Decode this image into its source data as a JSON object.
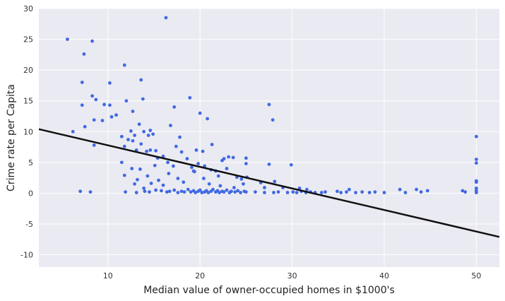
{
  "chart_data": {
    "type": "scatter",
    "title": "",
    "xlabel": "Median value of owner-occupied homes in $1000's",
    "ylabel": "Crime rate per Capita",
    "xlim": [
      2.5,
      52.5
    ],
    "ylim": [
      -12,
      30
    ],
    "x_ticks": [
      10,
      20,
      30,
      40,
      50
    ],
    "y_ticks": [
      30,
      25,
      20,
      15,
      10,
      5,
      0,
      -5,
      -10
    ],
    "grid": true,
    "legend": "none",
    "background_color": "#eaeaf2",
    "grid_color": "#ffffff",
    "point_color": "#4169e1",
    "line_color": "#111111",
    "regression_line": {
      "x": [
        2.5,
        52.5
      ],
      "y": [
        10.4,
        -7.1
      ]
    },
    "points": [
      [
        5.6,
        25.0
      ],
      [
        6.2,
        10.0
      ],
      [
        7.2,
        18.0
      ],
      [
        7.2,
        14.3
      ],
      [
        7.4,
        22.6
      ],
      [
        7.5,
        10.8
      ],
      [
        8.3,
        24.7
      ],
      [
        8.3,
        15.8
      ],
      [
        8.5,
        11.9
      ],
      [
        8.7,
        15.2
      ],
      [
        8.5,
        7.8
      ],
      [
        8.1,
        0.2
      ],
      [
        7.0,
        0.3
      ],
      [
        9.4,
        11.8
      ],
      [
        9.6,
        14.4
      ],
      [
        10.2,
        17.9
      ],
      [
        10.2,
        14.3
      ],
      [
        10.4,
        12.4
      ],
      [
        10.9,
        12.7
      ],
      [
        11.5,
        9.2
      ],
      [
        11.8,
        20.8
      ],
      [
        12.0,
        15.0
      ],
      [
        11.8,
        7.6
      ],
      [
        12.2,
        8.7
      ],
      [
        12.7,
        13.3
      ],
      [
        12.5,
        10.1
      ],
      [
        12.7,
        8.5
      ],
      [
        12.9,
        9.4
      ],
      [
        13.1,
        7.0
      ],
      [
        13.4,
        11.2
      ],
      [
        13.6,
        18.4
      ],
      [
        13.8,
        15.3
      ],
      [
        13.6,
        8.0
      ],
      [
        13.9,
        10.0
      ],
      [
        14.2,
        6.8
      ],
      [
        14.4,
        9.4
      ],
      [
        14.6,
        10.2
      ],
      [
        14.6,
        7.0
      ],
      [
        14.9,
        9.6
      ],
      [
        15.2,
        6.9
      ],
      [
        15.4,
        5.7
      ],
      [
        16.0,
        6.0
      ],
      [
        16.3,
        28.5
      ],
      [
        16.5,
        5.0
      ],
      [
        16.8,
        11.0
      ],
      [
        17.2,
        14.0
      ],
      [
        17.4,
        7.6
      ],
      [
        17.8,
        9.1
      ],
      [
        18.0,
        6.7
      ],
      [
        18.6,
        5.6
      ],
      [
        18.9,
        15.5
      ],
      [
        19.1,
        4.2
      ],
      [
        19.3,
        3.6
      ],
      [
        19.6,
        7.0
      ],
      [
        19.8,
        4.8
      ],
      [
        20.0,
        13.0
      ],
      [
        20.3,
        6.8
      ],
      [
        20.5,
        4.4
      ],
      [
        20.8,
        12.1
      ],
      [
        21.2,
        3.8
      ],
      [
        21.3,
        7.9
      ],
      [
        21.7,
        3.6
      ],
      [
        22.0,
        2.8
      ],
      [
        22.4,
        5.3
      ],
      [
        22.6,
        5.6
      ],
      [
        22.9,
        4.0
      ],
      [
        23.1,
        5.9
      ],
      [
        23.6,
        5.8
      ],
      [
        24.0,
        2.6
      ],
      [
        24.5,
        2.3
      ],
      [
        25.0,
        5.7
      ],
      [
        25.0,
        4.8
      ],
      [
        25.1,
        2.6
      ],
      [
        27.5,
        14.4
      ],
      [
        27.9,
        11.9
      ],
      [
        27.5,
        4.7
      ],
      [
        28.1,
        1.9
      ],
      [
        29.0,
        0.9
      ],
      [
        29.9,
        4.6
      ],
      [
        30.8,
        0.8
      ],
      [
        31.6,
        0.6
      ],
      [
        11.5,
        5.0
      ],
      [
        11.8,
        2.9
      ],
      [
        12.6,
        4.0
      ],
      [
        12.9,
        1.5
      ],
      [
        13.2,
        2.2
      ],
      [
        13.5,
        3.9
      ],
      [
        13.9,
        0.8
      ],
      [
        14.3,
        2.8
      ],
      [
        14.7,
        1.6
      ],
      [
        15.1,
        4.5
      ],
      [
        15.5,
        2.1
      ],
      [
        16.0,
        1.3
      ],
      [
        16.6,
        3.2
      ],
      [
        17.1,
        4.4
      ],
      [
        17.6,
        2.4
      ],
      [
        18.2,
        1.8
      ],
      [
        19.4,
        3.5
      ],
      [
        20.4,
        2.4
      ],
      [
        21.0,
        1.5
      ],
      [
        22.2,
        1.2
      ],
      [
        23.7,
        0.9
      ],
      [
        24.7,
        1.5
      ],
      [
        26.6,
        1.7
      ],
      [
        27.0,
        0.9
      ],
      [
        11.9,
        0.2
      ],
      [
        13.1,
        0.1
      ],
      [
        14.0,
        0.3
      ],
      [
        14.5,
        0.2
      ],
      [
        15.2,
        0.5
      ],
      [
        15.8,
        0.4
      ],
      [
        16.4,
        0.2
      ],
      [
        16.7,
        0.3
      ],
      [
        17.2,
        0.5
      ],
      [
        17.6,
        0.1
      ],
      [
        18.0,
        0.3
      ],
      [
        18.3,
        0.2
      ],
      [
        18.7,
        0.6
      ],
      [
        19.0,
        0.2
      ],
      [
        19.3,
        0.4
      ],
      [
        19.5,
        0.1
      ],
      [
        19.8,
        0.3
      ],
      [
        20.0,
        0.5
      ],
      [
        20.2,
        0.1
      ],
      [
        20.5,
        0.2
      ],
      [
        20.7,
        0.4
      ],
      [
        20.9,
        0.1
      ],
      [
        21.2,
        0.3
      ],
      [
        21.4,
        0.6
      ],
      [
        21.7,
        0.2
      ],
      [
        21.9,
        0.4
      ],
      [
        22.1,
        0.1
      ],
      [
        22.4,
        0.3
      ],
      [
        22.6,
        0.2
      ],
      [
        22.9,
        0.5
      ],
      [
        23.2,
        0.1
      ],
      [
        23.4,
        0.3
      ],
      [
        23.8,
        0.2
      ],
      [
        24.1,
        0.4
      ],
      [
        24.4,
        0.1
      ],
      [
        24.8,
        0.3
      ],
      [
        25.0,
        0.2
      ],
      [
        26.0,
        0.2
      ],
      [
        27.0,
        0.1
      ],
      [
        28.0,
        0.1
      ],
      [
        28.5,
        0.2
      ],
      [
        29.5,
        0.1
      ],
      [
        30.1,
        0.2
      ],
      [
        30.5,
        0.1
      ],
      [
        31.0,
        0.3
      ],
      [
        31.5,
        0.1
      ],
      [
        32.0,
        0.2
      ],
      [
        32.5,
        0.1
      ],
      [
        33.2,
        0.1
      ],
      [
        33.6,
        0.2
      ],
      [
        34.9,
        0.3
      ],
      [
        35.3,
        0.1
      ],
      [
        35.9,
        0.2
      ],
      [
        36.2,
        0.6
      ],
      [
        36.9,
        0.1
      ],
      [
        37.6,
        0.2
      ],
      [
        38.4,
        0.1
      ],
      [
        39.0,
        0.2
      ],
      [
        40.0,
        0.1
      ],
      [
        41.7,
        0.6
      ],
      [
        42.3,
        0.1
      ],
      [
        43.5,
        0.6
      ],
      [
        44.0,
        0.2
      ],
      [
        44.7,
        0.4
      ],
      [
        48.5,
        0.4
      ],
      [
        48.8,
        0.2
      ],
      [
        50.0,
        9.2
      ],
      [
        50.0,
        5.5
      ],
      [
        50.0,
        4.9
      ],
      [
        50.0,
        2.0
      ],
      [
        50.0,
        1.8
      ],
      [
        50.0,
        0.8
      ],
      [
        50.0,
        0.4
      ],
      [
        50.0,
        0.1
      ]
    ]
  }
}
